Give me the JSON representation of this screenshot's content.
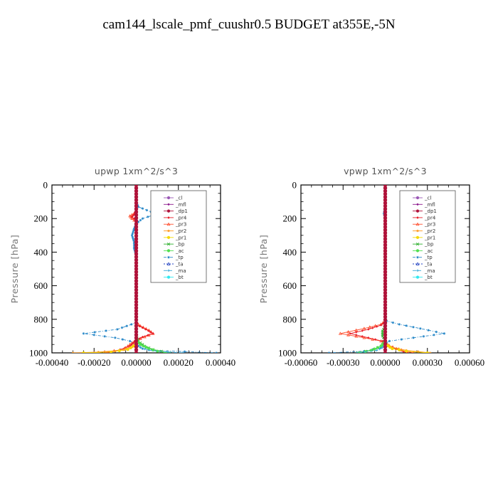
{
  "title": "cam144_lscale_pmf_cuushr0.5  BUDGET at355E,-5N",
  "colors": {
    "_cl": "#9b59b6",
    "_mfl": "#8e1a8e",
    "_dp1": "#b0123a",
    "_pr4": "#e8202a",
    "_pr3": "#ff5030",
    "_pr2": "#ff9a20",
    "_pr1": "#f5d800",
    "_bp": "#30b030",
    "_ac": "#50e050",
    "_tp": "#2888c8",
    "_ta": "#2040c0",
    "_ma": "#38a8d8",
    "_bt": "#30e8f0"
  },
  "chart_data": [
    {
      "type": "line",
      "title": "upwp   1xm^2/s^3",
      "ylabel": "Pressure [hPa]",
      "xlabel": "",
      "xlim": [
        -0.0004,
        0.0004
      ],
      "ylim": [
        1000,
        0
      ],
      "x_ticks": [
        "-0.00040",
        "-0.00020",
        "0.00000",
        "0.00020",
        "0.00040"
      ],
      "x_tick_values": [
        -0.0004,
        -0.0002,
        0,
        0.0002,
        0.0004
      ],
      "y_ticks": [
        "0",
        "200",
        "400",
        "600",
        "800",
        "1000"
      ],
      "y_tick_values": [
        0,
        200,
        400,
        600,
        800,
        1000
      ],
      "legend": [
        "_cl",
        "_mfl",
        "_dp1",
        "_pr4",
        "_pr3",
        "_pr2",
        "_pr1",
        "_bp",
        "_ac",
        "_tp",
        "_ta",
        "_ma",
        "_bt"
      ],
      "legend_position": "top-right",
      "series": [
        {
          "name": "_tp",
          "points": [
            [
              0,
              100
            ],
            [
              1e-05,
              130
            ],
            [
              7e-05,
              160
            ],
            [
              8e-05,
              180
            ],
            [
              3e-05,
              200
            ],
            [
              0,
              230
            ],
            [
              -1e-05,
              260
            ],
            [
              -2e-05,
              300
            ],
            [
              -1e-05,
              340
            ],
            [
              -1e-05,
              380
            ],
            [
              0,
              420
            ],
            [
              0,
              780
            ],
            [
              0,
              820
            ],
            [
              -9e-05,
              860
            ],
            [
              -0.00025,
              885
            ],
            [
              -0.0001,
              910
            ],
            [
              -3e-05,
              930
            ],
            [
              0,
              950
            ],
            [
              3e-05,
              975
            ],
            [
              8e-05,
              985
            ],
            [
              0.00038,
              1000
            ]
          ]
        },
        {
          "name": "_pr3",
          "points": [
            [
              0,
              0
            ],
            [
              0,
              150
            ],
            [
              -1e-05,
              170
            ],
            [
              -3e-05,
              185
            ],
            [
              -2e-05,
              200
            ],
            [
              0,
              220
            ],
            [
              0,
              820
            ],
            [
              2e-05,
              840
            ],
            [
              6e-05,
              865
            ],
            [
              8e-05,
              885
            ],
            [
              4e-05,
              905
            ],
            [
              0,
              925
            ],
            [
              -3e-05,
              950
            ],
            [
              -6e-05,
              980
            ],
            [
              -0.00015,
              995
            ],
            [
              -0.0002,
              1000
            ]
          ]
        },
        {
          "name": "_pr4",
          "points": [
            [
              0,
              0
            ],
            [
              0,
              150
            ],
            [
              -1e-05,
              175
            ],
            [
              -2e-05,
              190
            ],
            [
              0,
              210
            ],
            [
              0,
              830
            ],
            [
              3e-05,
              850
            ],
            [
              6e-05,
              870
            ],
            [
              8e-05,
              885
            ],
            [
              3e-05,
              905
            ],
            [
              0,
              925
            ],
            [
              -3e-05,
              960
            ],
            [
              -0.0001,
              990
            ],
            [
              -0.00014,
              1000
            ]
          ]
        },
        {
          "name": "_pr2",
          "points": [
            [
              0,
              0
            ],
            [
              0,
              940
            ],
            [
              -2e-05,
              965
            ],
            [
              -8e-05,
              985
            ],
            [
              -0.00018,
              995
            ],
            [
              -0.0003,
              1000
            ]
          ]
        },
        {
          "name": "_pr1",
          "points": [
            [
              0,
              0
            ],
            [
              0,
              950
            ],
            [
              -4e-05,
              980
            ],
            [
              -0.00012,
              995
            ],
            [
              -0.00025,
              1000
            ]
          ]
        },
        {
          "name": "_bp",
          "points": [
            [
              0,
              0
            ],
            [
              0,
              900
            ],
            [
              1e-05,
              930
            ],
            [
              4e-05,
              960
            ],
            [
              8e-05,
              980
            ],
            [
              0.00012,
              990
            ],
            [
              0.00016,
              1000
            ]
          ]
        },
        {
          "name": "_ac",
          "points": [
            [
              0,
              0
            ],
            [
              0,
              920
            ],
            [
              2e-05,
              950
            ],
            [
              6e-05,
              975
            ],
            [
              0.0001,
              990
            ],
            [
              0.00014,
              1000
            ]
          ]
        },
        {
          "name": "_ma",
          "points": [
            [
              0,
              0
            ],
            [
              0,
              960
            ],
            [
              6e-05,
              985
            ],
            [
              0.00015,
              995
            ],
            [
              0.00022,
              1000
            ]
          ]
        },
        {
          "name": "_mfl",
          "points": [
            [
              0,
              0
            ],
            [
              0,
              1000
            ]
          ]
        },
        {
          "name": "_dp1",
          "points": [
            [
              0,
              0
            ],
            [
              0,
              1000
            ]
          ]
        }
      ]
    },
    {
      "type": "line",
      "title": "vpwp   1xm^2/s^3",
      "ylabel": "Pressure [hPa]",
      "xlabel": "",
      "xlim": [
        -0.0006,
        0.0006
      ],
      "ylim": [
        1000,
        0
      ],
      "x_ticks": [
        "-0.00060",
        "-0.00030",
        "0.00000",
        "0.00030",
        "0.00060"
      ],
      "x_tick_values": [
        -0.0006,
        -0.0003,
        0,
        0.0003,
        0.0006
      ],
      "y_ticks": [
        "0",
        "200",
        "400",
        "600",
        "800",
        "1000"
      ],
      "y_tick_values": [
        0,
        200,
        400,
        600,
        800,
        1000
      ],
      "legend": [
        "_cl",
        "_mfl",
        "_dp1",
        "_pr4",
        "_pr3",
        "_pr2",
        "_pr1",
        "_bp",
        "_ac",
        "_tp",
        "_ta",
        "_ma",
        "_bt"
      ],
      "legend_position": "top-right",
      "series": [
        {
          "name": "_tp",
          "points": [
            [
              0,
              0
            ],
            [
              0,
              130
            ],
            [
              -1e-05,
              170
            ],
            [
              0,
              200
            ],
            [
              0,
              790
            ],
            [
              1e-05,
              810
            ],
            [
              0.0001,
              830
            ],
            [
              0.00025,
              855
            ],
            [
              0.00042,
              885
            ],
            [
              0.0002,
              910
            ],
            [
              3e-05,
              930
            ],
            [
              -1e-05,
              950
            ],
            [
              -3e-05,
              970
            ],
            [
              -0.00015,
              990
            ],
            [
              -0.0004,
              1000
            ]
          ]
        },
        {
          "name": "_pr3",
          "points": [
            [
              0,
              0
            ],
            [
              0,
              810
            ],
            [
              -3e-05,
              830
            ],
            [
              -0.00015,
              855
            ],
            [
              -0.00032,
              885
            ],
            [
              -0.00015,
              910
            ],
            [
              -3e-05,
              930
            ],
            [
              0,
              945
            ],
            [
              8e-05,
              975
            ],
            [
              0.00015,
              990
            ],
            [
              0.0002,
              1000
            ]
          ]
        },
        {
          "name": "_pr4",
          "points": [
            [
              0,
              0
            ],
            [
              0,
              815
            ],
            [
              -3e-05,
              835
            ],
            [
              -0.00012,
              860
            ],
            [
              -0.00025,
              885
            ],
            [
              -0.00012,
              910
            ],
            [
              -2e-05,
              930
            ],
            [
              3e-05,
              960
            ],
            [
              0.0001,
              985
            ],
            [
              0.00016,
              1000
            ]
          ]
        },
        {
          "name": "_pr2",
          "points": [
            [
              0,
              0
            ],
            [
              0,
              940
            ],
            [
              4e-05,
              965
            ],
            [
              0.00015,
              985
            ],
            [
              0.00032,
              1000
            ]
          ]
        },
        {
          "name": "_pr1",
          "points": [
            [
              0,
              0
            ],
            [
              0,
              950
            ],
            [
              5e-05,
              975
            ],
            [
              0.00015,
              990
            ],
            [
              0.0003,
              1000
            ]
          ]
        },
        {
          "name": "_bp",
          "points": [
            [
              0,
              0
            ],
            [
              0,
              840
            ],
            [
              -2e-05,
              870
            ],
            [
              -2e-05,
              900
            ],
            [
              0,
              930
            ],
            [
              -3e-05,
              960
            ],
            [
              -8e-05,
              980
            ],
            [
              -0.0002,
              1000
            ]
          ]
        },
        {
          "name": "_ac",
          "points": [
            [
              0,
              0
            ],
            [
              0,
              930
            ],
            [
              -3e-05,
              960
            ],
            [
              -0.0001,
              985
            ],
            [
              -0.00018,
              1000
            ]
          ]
        },
        {
          "name": "_ma",
          "points": [
            [
              0,
              0
            ],
            [
              0,
              960
            ],
            [
              -6e-05,
              985
            ],
            [
              -0.00015,
              995
            ],
            [
              -0.0002,
              1000
            ]
          ]
        },
        {
          "name": "_mfl",
          "points": [
            [
              0,
              0
            ],
            [
              0,
              1000
            ]
          ]
        },
        {
          "name": "_dp1",
          "points": [
            [
              0,
              0
            ],
            [
              0,
              1000
            ]
          ]
        }
      ]
    }
  ]
}
